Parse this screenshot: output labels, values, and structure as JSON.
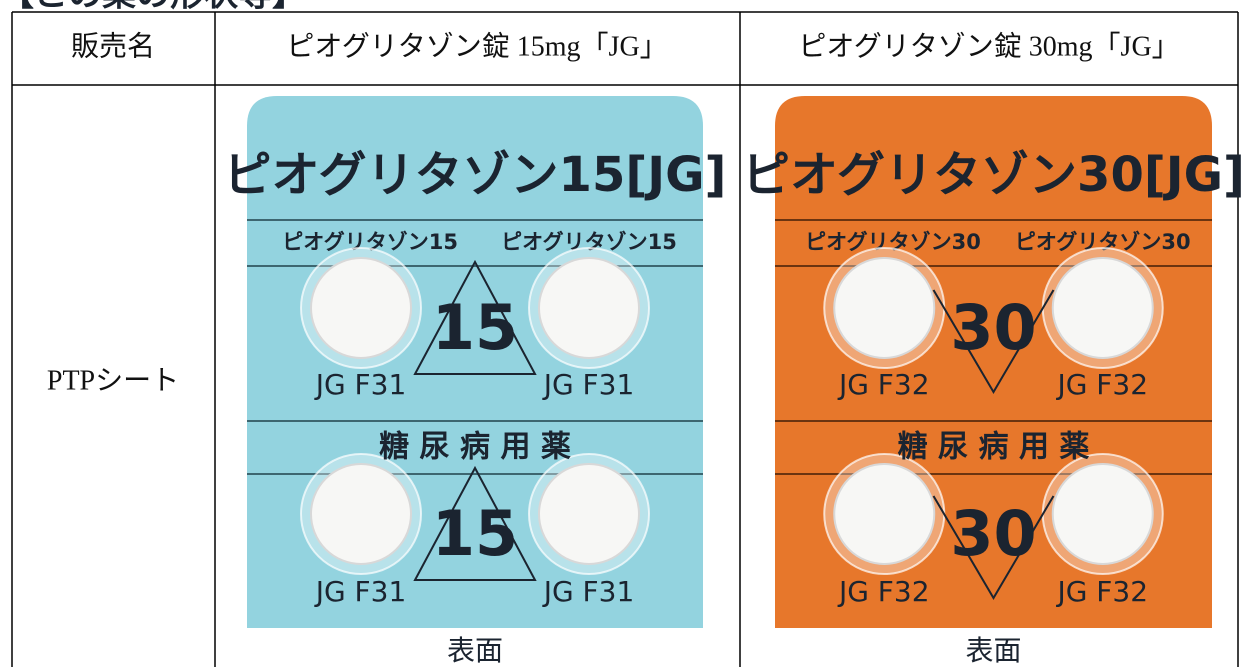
{
  "heading": "【この薬の形状等】",
  "table": {
    "header": [
      "販売名",
      "ピオグリタゾン錠 15mg「JG」",
      "ピオグリタゾン錠 30mg「JG」"
    ],
    "rows": [
      [
        "PTPシート"
      ]
    ]
  },
  "sheets": [
    {
      "title": "ピオグリタゾン15[JG]",
      "strip_labels": [
        "ピオグリタゾン15",
        "ピオグリタゾン15"
      ],
      "marks": [
        "15",
        "15"
      ],
      "imprints": [
        "JG F31",
        "JG F31",
        "JG F31",
        "JG F31"
      ],
      "band": "糖 尿 病 用 薬",
      "caption": "表面"
    },
    {
      "title": "ピオグリタゾン30[JG]",
      "strip_labels": [
        "ピオグリタゾン30",
        "ピオグリタゾン30"
      ],
      "marks": [
        "30",
        "30"
      ],
      "imprints": [
        "JG F32",
        "JG F32",
        "JG F32",
        "JG F32"
      ],
      "band": "糖 尿 病 用 薬",
      "caption": "表面"
    }
  ]
}
